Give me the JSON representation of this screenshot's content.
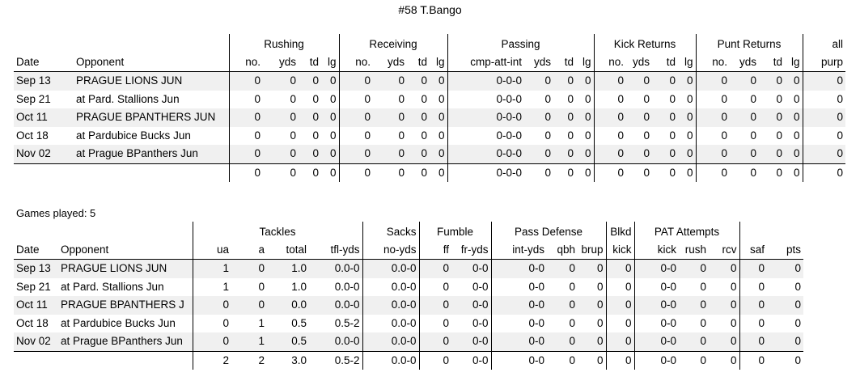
{
  "title": "#58 T.Bango",
  "games_played": "Games played: 5",
  "offense": {
    "groups": [
      "Rushing",
      "Receiving",
      "Passing",
      "Kick Returns",
      "Punt Returns",
      "all"
    ],
    "headers": [
      "Date",
      "Opponent",
      "no.",
      "yds",
      "td",
      "lg",
      "no.",
      "yds",
      "td",
      "lg",
      "cmp-att-int",
      "yds",
      "td",
      "lg",
      "no.",
      "yds",
      "td",
      "lg",
      "no.",
      "yds",
      "td",
      "lg",
      "purp"
    ],
    "rows": [
      [
        "Sep 13",
        "PRAGUE LIONS JUN",
        "0",
        "0",
        "0",
        "0",
        "0",
        "0",
        "0",
        "0",
        "0-0-0",
        "0",
        "0",
        "0",
        "0",
        "0",
        "0",
        "0",
        "0",
        "0",
        "0",
        "0",
        "0"
      ],
      [
        "Sep 21",
        "at Pard. Stallions Jun",
        "0",
        "0",
        "0",
        "0",
        "0",
        "0",
        "0",
        "0",
        "0-0-0",
        "0",
        "0",
        "0",
        "0",
        "0",
        "0",
        "0",
        "0",
        "0",
        "0",
        "0",
        "0"
      ],
      [
        "Oct 11",
        "PRAGUE BPANTHERS JUN",
        "0",
        "0",
        "0",
        "0",
        "0",
        "0",
        "0",
        "0",
        "0-0-0",
        "0",
        "0",
        "0",
        "0",
        "0",
        "0",
        "0",
        "0",
        "0",
        "0",
        "0",
        "0"
      ],
      [
        "Oct 18",
        "at Pardubice Bucks Jun",
        "0",
        "0",
        "0",
        "0",
        "0",
        "0",
        "0",
        "0",
        "0-0-0",
        "0",
        "0",
        "0",
        "0",
        "0",
        "0",
        "0",
        "0",
        "0",
        "0",
        "0",
        "0"
      ],
      [
        "Nov 02",
        "at Prague BPanthers Jun",
        "0",
        "0",
        "0",
        "0",
        "0",
        "0",
        "0",
        "0",
        "0-0-0",
        "0",
        "0",
        "0",
        "0",
        "0",
        "0",
        "0",
        "0",
        "0",
        "0",
        "0",
        "0"
      ]
    ],
    "totals": [
      "",
      "",
      "0",
      "0",
      "0",
      "0",
      "0",
      "0",
      "0",
      "0",
      "0-0-0",
      "0",
      "0",
      "0",
      "0",
      "0",
      "0",
      "0",
      "0",
      "0",
      "0",
      "0",
      "0"
    ]
  },
  "defense": {
    "groups": [
      "Tackles",
      "Sacks",
      "Fumble",
      "Pass Defense",
      "Blkd",
      "PAT Attempts"
    ],
    "headers": [
      "Date",
      "Opponent",
      "ua",
      "a",
      "total",
      "tfl-yds",
      "no-yds",
      "ff",
      "fr-yds",
      "int-yds",
      "qbh",
      "brup",
      "kick",
      "kick",
      "rush",
      "rcv",
      "saf",
      "pts"
    ],
    "rows": [
      [
        "Sep 13",
        "PRAGUE LIONS JUN",
        "1",
        "0",
        "1.0",
        "0.0-0",
        "0.0-0",
        "0",
        "0-0",
        "0-0",
        "0",
        "0",
        "0",
        "0-0",
        "0",
        "0",
        "0",
        "0"
      ],
      [
        "Sep 21",
        "at Pard. Stallions Jun",
        "1",
        "0",
        "1.0",
        "0.0-0",
        "0.0-0",
        "0",
        "0-0",
        "0-0",
        "0",
        "0",
        "0",
        "0-0",
        "0",
        "0",
        "0",
        "0"
      ],
      [
        "Oct 11",
        "PRAGUE BPANTHERS J",
        "0",
        "0",
        "0.0",
        "0.0-0",
        "0.0-0",
        "0",
        "0-0",
        "0-0",
        "0",
        "0",
        "0",
        "0-0",
        "0",
        "0",
        "0",
        "0"
      ],
      [
        "Oct 18",
        "at Pardubice Bucks Jun",
        "0",
        "1",
        "0.5",
        "0.5-2",
        "0.0-0",
        "0",
        "0-0",
        "0-0",
        "0",
        "0",
        "0",
        "0-0",
        "0",
        "0",
        "0",
        "0"
      ],
      [
        "Nov 02",
        "at Prague BPanthers Jun",
        "0",
        "1",
        "0.5",
        "0.0-0",
        "0.0-0",
        "0",
        "0-0",
        "0-0",
        "0",
        "0",
        "0",
        "0-0",
        "0",
        "0",
        "0",
        "0"
      ]
    ],
    "totals": [
      "",
      "",
      "2",
      "2",
      "3.0",
      "0.5-2",
      "0.0-0",
      "0",
      "0-0",
      "0-0",
      "0",
      "0",
      "0",
      "0-0",
      "0",
      "0",
      "0",
      "0"
    ]
  }
}
